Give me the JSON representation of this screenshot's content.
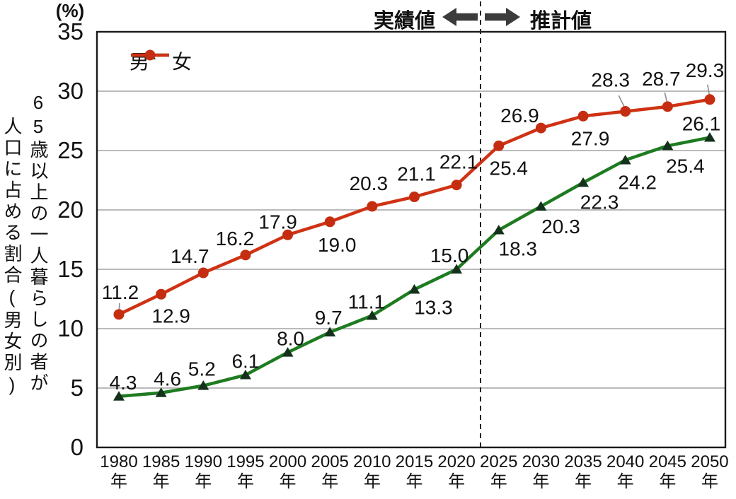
{
  "y_axis": {
    "unit": "(%)",
    "title_line1": "65歳以上の一人暮らしの者が",
    "title_line2": "人口に占める割合(男女別)"
  },
  "x_axis": {
    "suffix": "年"
  },
  "chart_data": {
    "type": "line",
    "categories": [
      "1980",
      "1985",
      "1990",
      "1995",
      "2000",
      "2005",
      "2010",
      "2015",
      "2020",
      "2025",
      "2030",
      "2035",
      "2040",
      "2045",
      "2050"
    ],
    "category_suffix": "年",
    "series": [
      {
        "name": "男",
        "values": [
          4.3,
          4.6,
          5.2,
          6.1,
          8.0,
          9.7,
          11.1,
          13.3,
          15.0,
          18.3,
          20.3,
          22.3,
          24.2,
          25.4,
          26.1
        ],
        "color": "#1e7b21",
        "marker": "triangle",
        "marker_color": "#14321b"
      },
      {
        "name": "女",
        "values": [
          11.2,
          12.9,
          14.7,
          16.2,
          17.9,
          19.0,
          20.3,
          21.1,
          22.1,
          25.4,
          26.9,
          27.9,
          28.3,
          28.7,
          29.3
        ],
        "color": "#cf3214",
        "marker": "circle",
        "marker_color": "#c52d10"
      }
    ],
    "title": "",
    "xlabel": "",
    "ylabel": "65歳以上の一人暮らしの者が人口に占める割合(男女別)",
    "y_unit": "(%)",
    "ylim": [
      0,
      35
    ],
    "ytick_step": 5,
    "yticks": [
      0,
      5,
      10,
      15,
      20,
      25,
      30,
      35
    ],
    "grid": true,
    "legend_position": "top-left-inside",
    "divider": {
      "after_category": "2020",
      "style": "dashed",
      "left_label": "実績値",
      "right_label": "推計値"
    },
    "colors": {
      "grid": "#a3a3a3",
      "axis": "#1a1a1a",
      "divider_line": "#222222",
      "arrow": "#3b3b3b",
      "leader_line": "#8c8c8c",
      "text": "#111111"
    }
  }
}
